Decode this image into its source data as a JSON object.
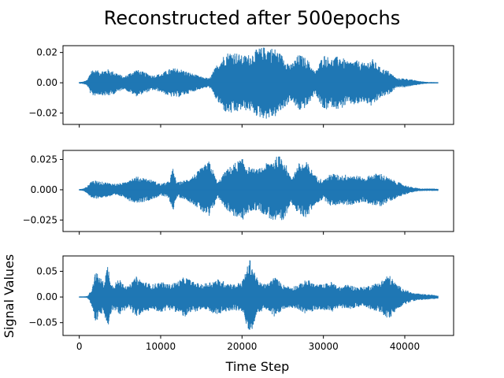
{
  "figure": {
    "title": "Reconstructed after 500epochs",
    "xlabel": "Time Step",
    "ylabel": "Signal Values"
  },
  "chart_data": [
    {
      "type": "line",
      "series_color": "#1f77b4",
      "xlim": [
        -2000,
        46000
      ],
      "ylim": [
        -0.0275,
        0.0245
      ],
      "x_ticks": [
        0,
        10000,
        20000,
        30000,
        40000
      ],
      "x_tick_labels": [
        "",
        "",
        "",
        "",
        ""
      ],
      "y_ticks": [
        -0.02,
        0.0,
        0.02
      ],
      "y_tick_labels": [
        "−0.02",
        "0.00",
        "0.02"
      ],
      "n_points": 44100,
      "envelope": {
        "x": [
          0,
          500,
          1000,
          1500,
          2500,
          3500,
          4500,
          5500,
          6000,
          7000,
          8000,
          9000,
          10000,
          11000,
          12000,
          13000,
          14000,
          15000,
          16000,
          17000,
          18000,
          19000,
          20000,
          21000,
          22000,
          23000,
          24000,
          25000,
          26000,
          27000,
          28000,
          29000,
          30000,
          31000,
          32000,
          33000,
          34000,
          35000,
          36000,
          37000,
          38000,
          39000,
          40000,
          41000,
          42000,
          43000,
          44100
        ],
        "amplitude": [
          0.0005,
          0.0008,
          0.002,
          0.009,
          0.008,
          0.009,
          0.007,
          0.004,
          0.006,
          0.009,
          0.007,
          0.005,
          0.006,
          0.009,
          0.01,
          0.008,
          0.006,
          0.004,
          0.003,
          0.013,
          0.02,
          0.021,
          0.018,
          0.019,
          0.023,
          0.024,
          0.023,
          0.018,
          0.012,
          0.019,
          0.016,
          0.007,
          0.019,
          0.016,
          0.018,
          0.014,
          0.015,
          0.013,
          0.016,
          0.01,
          0.008,
          0.003,
          0.003,
          0.002,
          0.001,
          0.0005,
          0.0003
        ]
      }
    },
    {
      "type": "line",
      "series_color": "#1f77b4",
      "xlim": [
        -2000,
        46000
      ],
      "ylim": [
        -0.0345,
        0.0325
      ],
      "x_ticks": [
        0,
        10000,
        20000,
        30000,
        40000
      ],
      "x_tick_labels": [
        "",
        "",
        "",
        "",
        ""
      ],
      "y_ticks": [
        -0.025,
        0.0,
        0.025
      ],
      "y_tick_labels": [
        "−0.025",
        "0.000",
        "0.025"
      ],
      "n_points": 44100,
      "envelope": {
        "x": [
          0,
          500,
          1000,
          1500,
          2500,
          3500,
          4500,
          5500,
          6000,
          7000,
          8000,
          9000,
          10000,
          11000,
          11500,
          12000,
          13000,
          14000,
          15000,
          16000,
          17000,
          18000,
          19000,
          20000,
          21000,
          22000,
          23000,
          24000,
          25000,
          26000,
          27000,
          28000,
          29000,
          30000,
          31000,
          32000,
          33000,
          34000,
          35000,
          36000,
          37000,
          38000,
          39000,
          40000,
          41000,
          42000,
          43000,
          44100
        ],
        "amplitude": [
          0.0005,
          0.001,
          0.003,
          0.008,
          0.007,
          0.006,
          0.005,
          0.006,
          0.009,
          0.011,
          0.01,
          0.008,
          0.005,
          0.007,
          0.018,
          0.006,
          0.008,
          0.012,
          0.018,
          0.024,
          0.006,
          0.016,
          0.022,
          0.026,
          0.018,
          0.017,
          0.022,
          0.027,
          0.029,
          0.01,
          0.022,
          0.023,
          0.012,
          0.008,
          0.014,
          0.012,
          0.013,
          0.012,
          0.01,
          0.013,
          0.014,
          0.01,
          0.007,
          0.004,
          0.002,
          0.001,
          0.001,
          0.001
        ]
      }
    },
    {
      "type": "line",
      "series_color": "#1f77b4",
      "xlim": [
        -2000,
        46000
      ],
      "ylim": [
        -0.075,
        0.08
      ],
      "x_ticks": [
        0,
        10000,
        20000,
        30000,
        40000
      ],
      "x_tick_labels": [
        "0",
        "10000",
        "20000",
        "30000",
        "40000"
      ],
      "y_ticks": [
        -0.05,
        0.0,
        0.05
      ],
      "y_tick_labels": [
        "−0.05",
        "0.00",
        "0.05"
      ],
      "n_points": 44100,
      "envelope": {
        "x": [
          0,
          500,
          1000,
          1500,
          2000,
          3000,
          3500,
          4000,
          5000,
          6000,
          7000,
          8000,
          9000,
          10000,
          11000,
          12000,
          13000,
          14000,
          15000,
          16000,
          17000,
          18000,
          19000,
          20000,
          21000,
          22000,
          23000,
          24000,
          25000,
          26000,
          27000,
          28000,
          29000,
          30000,
          31000,
          32000,
          33000,
          34000,
          35000,
          36000,
          37000,
          38000,
          39000,
          40000,
          41000,
          42000,
          43000,
          44100
        ],
        "amplitude": [
          0.001,
          0.001,
          0.002,
          0.015,
          0.05,
          0.03,
          0.065,
          0.025,
          0.035,
          0.02,
          0.04,
          0.03,
          0.025,
          0.03,
          0.025,
          0.03,
          0.04,
          0.03,
          0.025,
          0.03,
          0.035,
          0.03,
          0.025,
          0.03,
          0.075,
          0.03,
          0.025,
          0.04,
          0.025,
          0.02,
          0.025,
          0.035,
          0.025,
          0.025,
          0.03,
          0.02,
          0.025,
          0.02,
          0.02,
          0.025,
          0.03,
          0.045,
          0.025,
          0.015,
          0.008,
          0.006,
          0.005,
          0.003
        ]
      }
    }
  ]
}
